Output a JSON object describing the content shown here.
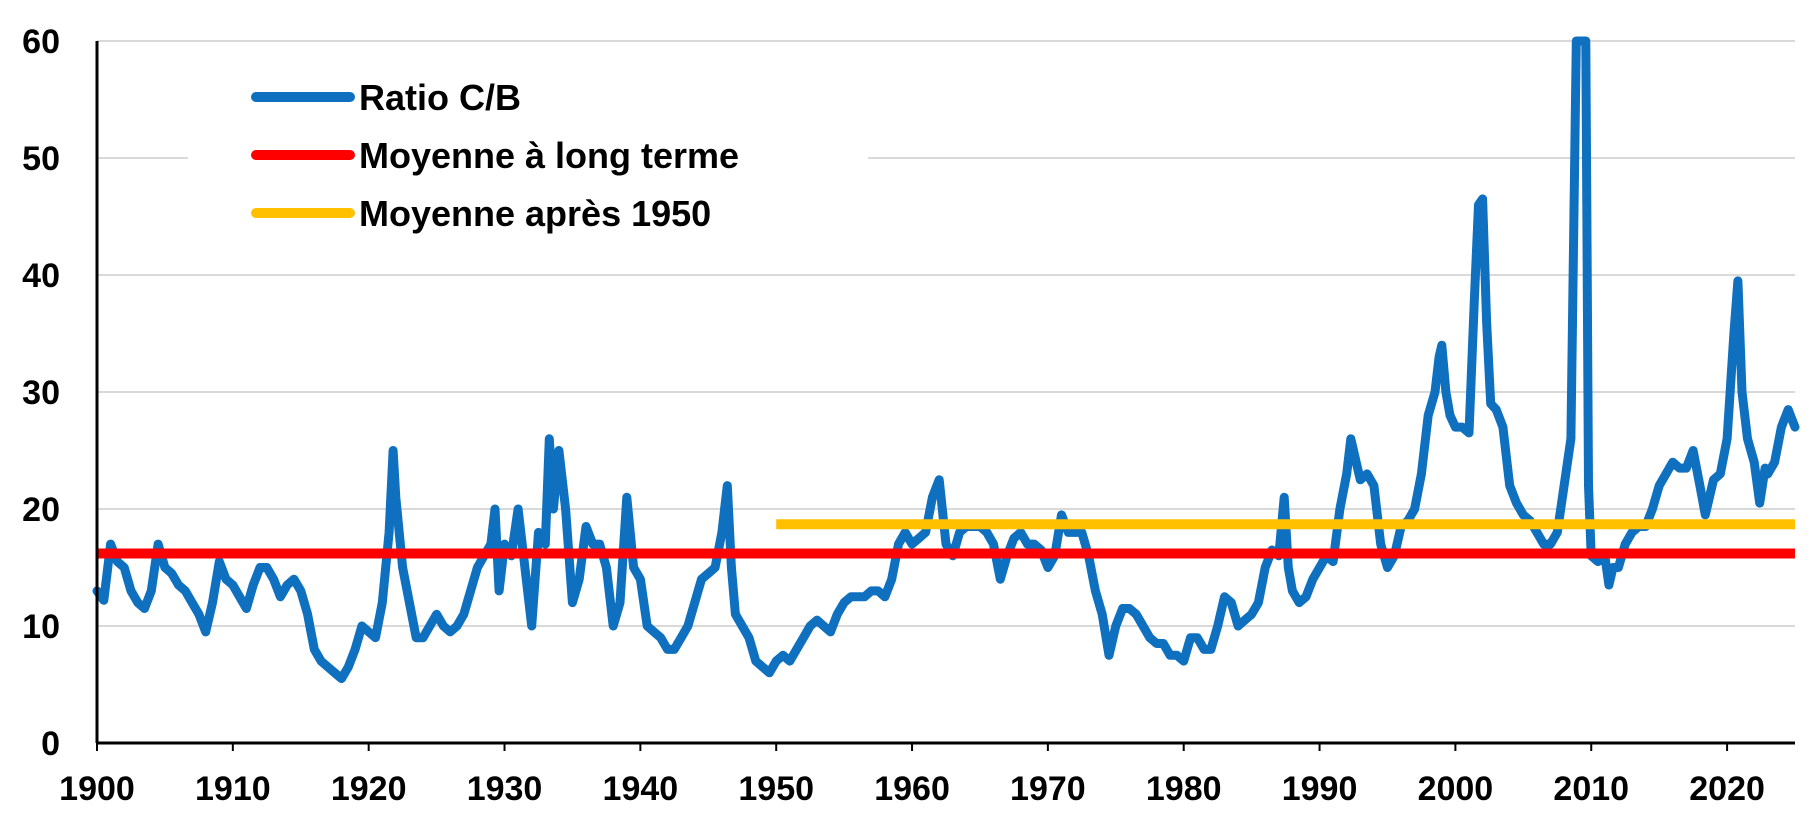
{
  "chart_data": {
    "type": "line",
    "title": "",
    "xlabel": "",
    "ylabel": "",
    "xlim": [
      1900,
      2025
    ],
    "ylim": [
      0,
      60
    ],
    "x_ticks": [
      1900,
      1910,
      1920,
      1930,
      1940,
      1950,
      1960,
      1970,
      1980,
      1990,
      2000,
      2010,
      2020
    ],
    "y_ticks": [
      0,
      10,
      20,
      30,
      40,
      50,
      60
    ],
    "grid": "horizontal",
    "legend_position": "top-left",
    "colors": {
      "ratio": "#0f70bf",
      "long_term_mean": "#ff0000",
      "post_1950_mean": "#ffc000",
      "grid": "#d9d9d9",
      "axis": "#000000"
    },
    "series": [
      {
        "name": "Ratio C/B",
        "color": "#0f70bf",
        "points": [
          [
            1900,
            13
          ],
          [
            1900.5,
            12.2
          ],
          [
            1901,
            17
          ],
          [
            1901.5,
            15.5
          ],
          [
            1902,
            15
          ],
          [
            1902.5,
            13
          ],
          [
            1903,
            12
          ],
          [
            1903.5,
            11.5
          ],
          [
            1904,
            13
          ],
          [
            1904.5,
            17
          ],
          [
            1905,
            15
          ],
          [
            1905.5,
            14.5
          ],
          [
            1906,
            13.5
          ],
          [
            1906.5,
            13
          ],
          [
            1907,
            12
          ],
          [
            1907.5,
            11
          ],
          [
            1908,
            9.5
          ],
          [
            1908.5,
            12
          ],
          [
            1909,
            15.5
          ],
          [
            1909.5,
            14
          ],
          [
            1910,
            13.5
          ],
          [
            1910.5,
            12.5
          ],
          [
            1911,
            11.5
          ],
          [
            1911.5,
            13.5
          ],
          [
            1912,
            15
          ],
          [
            1912.5,
            15
          ],
          [
            1913,
            14
          ],
          [
            1913.5,
            12.5
          ],
          [
            1914,
            13.5
          ],
          [
            1914.5,
            14
          ],
          [
            1915,
            13
          ],
          [
            1915.5,
            11
          ],
          [
            1916,
            8
          ],
          [
            1916.5,
            7
          ],
          [
            1917,
            6.5
          ],
          [
            1917.5,
            6
          ],
          [
            1918,
            5.5
          ],
          [
            1918.5,
            6.5
          ],
          [
            1919,
            8
          ],
          [
            1919.5,
            10
          ],
          [
            1920,
            9.5
          ],
          [
            1920.5,
            9
          ],
          [
            1921,
            12
          ],
          [
            1921.5,
            18
          ],
          [
            1921.8,
            25
          ],
          [
            1922,
            21
          ],
          [
            1922.5,
            15
          ],
          [
            1923,
            12
          ],
          [
            1923.5,
            9
          ],
          [
            1924,
            9
          ],
          [
            1924.5,
            10
          ],
          [
            1925,
            11
          ],
          [
            1925.5,
            10
          ],
          [
            1926,
            9.5
          ],
          [
            1926.5,
            10
          ],
          [
            1927,
            11
          ],
          [
            1927.5,
            13
          ],
          [
            1928,
            15
          ],
          [
            1928.5,
            16
          ],
          [
            1929,
            17
          ],
          [
            1929.3,
            20
          ],
          [
            1929.6,
            13
          ],
          [
            1930,
            17
          ],
          [
            1930.5,
            16
          ],
          [
            1931,
            20
          ],
          [
            1931.5,
            15
          ],
          [
            1932,
            10
          ],
          [
            1932.5,
            18
          ],
          [
            1933,
            17
          ],
          [
            1933.3,
            26
          ],
          [
            1933.6,
            20
          ],
          [
            1934,
            25
          ],
          [
            1934.5,
            20
          ],
          [
            1935,
            12
          ],
          [
            1935.5,
            14
          ],
          [
            1936,
            18.5
          ],
          [
            1936.5,
            17
          ],
          [
            1937,
            17
          ],
          [
            1937.5,
            15
          ],
          [
            1938,
            10
          ],
          [
            1938.5,
            12
          ],
          [
            1939,
            21
          ],
          [
            1939.5,
            15
          ],
          [
            1940,
            14
          ],
          [
            1940.5,
            10
          ],
          [
            1941,
            9.5
          ],
          [
            1941.5,
            9
          ],
          [
            1942,
            8
          ],
          [
            1942.5,
            8
          ],
          [
            1943,
            9
          ],
          [
            1943.5,
            10
          ],
          [
            1944,
            12
          ],
          [
            1944.5,
            14
          ],
          [
            1945,
            14.5
          ],
          [
            1945.5,
            15
          ],
          [
            1946,
            18
          ],
          [
            1946.4,
            22
          ],
          [
            1946.7,
            15
          ],
          [
            1947,
            11
          ],
          [
            1947.5,
            10
          ],
          [
            1948,
            9
          ],
          [
            1948.5,
            7
          ],
          [
            1949,
            6.5
          ],
          [
            1949.5,
            6
          ],
          [
            1950,
            7
          ],
          [
            1950.5,
            7.5
          ],
          [
            1951,
            7
          ],
          [
            1951.5,
            8
          ],
          [
            1952,
            9
          ],
          [
            1952.5,
            10
          ],
          [
            1953,
            10.5
          ],
          [
            1953.5,
            10
          ],
          [
            1954,
            9.5
          ],
          [
            1954.5,
            11
          ],
          [
            1955,
            12
          ],
          [
            1955.5,
            12.5
          ],
          [
            1956,
            12.5
          ],
          [
            1956.5,
            12.5
          ],
          [
            1957,
            13
          ],
          [
            1957.5,
            13
          ],
          [
            1958,
            12.5
          ],
          [
            1958.5,
            14
          ],
          [
            1959,
            17
          ],
          [
            1959.5,
            18
          ],
          [
            1960,
            17
          ],
          [
            1960.5,
            17.5
          ],
          [
            1961,
            18
          ],
          [
            1961.5,
            21
          ],
          [
            1962,
            22.5
          ],
          [
            1962.5,
            17
          ],
          [
            1963,
            16
          ],
          [
            1963.5,
            18
          ],
          [
            1964,
            18.5
          ],
          [
            1964.5,
            18.5
          ],
          [
            1965,
            18.5
          ],
          [
            1965.5,
            18
          ],
          [
            1966,
            17
          ],
          [
            1966.5,
            14
          ],
          [
            1967,
            16
          ],
          [
            1967.5,
            17.5
          ],
          [
            1968,
            18
          ],
          [
            1968.5,
            17
          ],
          [
            1969,
            17
          ],
          [
            1969.5,
            16.5
          ],
          [
            1970,
            15
          ],
          [
            1970.5,
            16
          ],
          [
            1971,
            19.5
          ],
          [
            1971.5,
            18
          ],
          [
            1972,
            18
          ],
          [
            1972.5,
            18
          ],
          [
            1973,
            16
          ],
          [
            1973.5,
            13
          ],
          [
            1974,
            11
          ],
          [
            1974.5,
            7.5
          ],
          [
            1975,
            10
          ],
          [
            1975.5,
            11.5
          ],
          [
            1976,
            11.5
          ],
          [
            1976.5,
            11
          ],
          [
            1977,
            10
          ],
          [
            1977.5,
            9
          ],
          [
            1978,
            8.5
          ],
          [
            1978.5,
            8.5
          ],
          [
            1979,
            7.5
          ],
          [
            1979.5,
            7.5
          ],
          [
            1980,
            7
          ],
          [
            1980.5,
            9
          ],
          [
            1981,
            9
          ],
          [
            1981.5,
            8
          ],
          [
            1982,
            8
          ],
          [
            1982.5,
            10
          ],
          [
            1983,
            12.5
          ],
          [
            1983.5,
            12
          ],
          [
            1984,
            10
          ],
          [
            1984.5,
            10.5
          ],
          [
            1985,
            11
          ],
          [
            1985.5,
            12
          ],
          [
            1986,
            15
          ],
          [
            1986.5,
            16.5
          ],
          [
            1987,
            16
          ],
          [
            1987.4,
            21
          ],
          [
            1987.7,
            15
          ],
          [
            1988,
            13
          ],
          [
            1988.5,
            12
          ],
          [
            1989,
            12.5
          ],
          [
            1989.5,
            14
          ],
          [
            1990,
            15
          ],
          [
            1990.5,
            16
          ],
          [
            1991,
            15.5
          ],
          [
            1991.5,
            20
          ],
          [
            1992,
            23
          ],
          [
            1992.3,
            26
          ],
          [
            1992.7,
            24
          ],
          [
            1993,
            22.5
          ],
          [
            1993.5,
            23
          ],
          [
            1994,
            22
          ],
          [
            1994.5,
            17
          ],
          [
            1995,
            15
          ],
          [
            1995.5,
            16
          ],
          [
            1996,
            18.5
          ],
          [
            1996.5,
            19
          ],
          [
            1997,
            20
          ],
          [
            1997.5,
            23
          ],
          [
            1998,
            28
          ],
          [
            1998.5,
            30
          ],
          [
            1998.8,
            33
          ],
          [
            1999,
            34
          ],
          [
            1999.3,
            30
          ],
          [
            1999.6,
            28
          ],
          [
            2000,
            27
          ],
          [
            2000.5,
            27
          ],
          [
            2001,
            26.5
          ],
          [
            2001.4,
            38
          ],
          [
            2001.7,
            46
          ],
          [
            2002,
            46.5
          ],
          [
            2002.3,
            36
          ],
          [
            2002.6,
            29
          ],
          [
            2003,
            28.5
          ],
          [
            2003.5,
            27
          ],
          [
            2004,
            22
          ],
          [
            2004.5,
            20.5
          ],
          [
            2005,
            19.5
          ],
          [
            2005.5,
            19
          ],
          [
            2006,
            18
          ],
          [
            2006.5,
            17
          ],
          [
            2007,
            17
          ],
          [
            2007.5,
            18
          ],
          [
            2008,
            22
          ],
          [
            2008.5,
            26
          ],
          [
            2008.9,
            60
          ],
          [
            2009.3,
            60
          ],
          [
            2009.6,
            60
          ],
          [
            2009.8,
            22
          ],
          [
            2010,
            16
          ],
          [
            2010.5,
            15.5
          ],
          [
            2011,
            16
          ],
          [
            2011.3,
            13.5
          ],
          [
            2011.6,
            15
          ],
          [
            2012,
            15
          ],
          [
            2012.5,
            17
          ],
          [
            2013,
            18
          ],
          [
            2013.5,
            18.5
          ],
          [
            2014,
            18.5
          ],
          [
            2014.5,
            20
          ],
          [
            2015,
            22
          ],
          [
            2015.5,
            23
          ],
          [
            2016,
            24
          ],
          [
            2016.5,
            23.5
          ],
          [
            2017,
            23.5
          ],
          [
            2017.5,
            25
          ],
          [
            2018,
            22
          ],
          [
            2018.4,
            19.5
          ],
          [
            2018.7,
            21
          ],
          [
            2019,
            22.5
          ],
          [
            2019.5,
            23
          ],
          [
            2020,
            26
          ],
          [
            2020.5,
            35
          ],
          [
            2020.8,
            39.5
          ],
          [
            2021.1,
            30
          ],
          [
            2021.5,
            26
          ],
          [
            2022,
            24
          ],
          [
            2022.4,
            20.5
          ],
          [
            2022.8,
            23.5
          ],
          [
            2023,
            23
          ],
          [
            2023.5,
            24
          ],
          [
            2024,
            27
          ],
          [
            2024.5,
            28.5
          ],
          [
            2025,
            27
          ]
        ]
      },
      {
        "name": "Moyenne à long terme",
        "color": "#ff0000",
        "points": [
          [
            1900,
            16.2
          ],
          [
            2025,
            16.2
          ]
        ]
      },
      {
        "name": "Moyenne après 1950",
        "color": "#ffc000",
        "points": [
          [
            1950,
            18.7
          ],
          [
            2025,
            18.7
          ]
        ]
      }
    ]
  }
}
